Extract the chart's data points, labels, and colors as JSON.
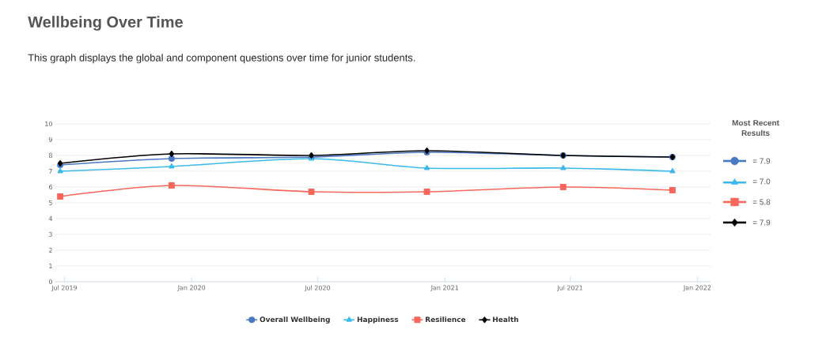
{
  "chart_data": {
    "type": "line",
    "title": "Wellbeing Over Time",
    "subtitle": "This graph displays the global and component questions over time for junior students.",
    "x": [
      "2019-06-25",
      "2019-12-03",
      "2020-06-22",
      "2020-12-06",
      "2021-06-21",
      "2021-11-26"
    ],
    "series": [
      {
        "name": "Overall Wellbeing",
        "color": "#4a78c2",
        "marker": "circle",
        "values": [
          7.4,
          7.8,
          7.9,
          8.2,
          8.0,
          7.9
        ]
      },
      {
        "name": "Happiness",
        "color": "#3cb9ea",
        "marker": "triangle",
        "values": [
          7.0,
          7.3,
          7.8,
          7.2,
          7.2,
          7.0
        ]
      },
      {
        "name": "Resilience",
        "color": "#f9675c",
        "marker": "square",
        "values": [
          5.4,
          6.1,
          5.7,
          5.7,
          6.0,
          5.8
        ]
      },
      {
        "name": "Health",
        "color": "#000000",
        "marker": "diamond",
        "values": [
          7.5,
          8.1,
          8.0,
          8.3,
          8.0,
          7.9
        ]
      }
    ],
    "xlim": [
      "2019-06-18",
      "2022-01-20"
    ],
    "xticks": [
      {
        "value": "2019-07-01",
        "label": "Jul 2019"
      },
      {
        "value": "2020-01-01",
        "label": "Jan 2020"
      },
      {
        "value": "2020-07-01",
        "label": "Jul 2020"
      },
      {
        "value": "2021-01-01",
        "label": "Jan 2021"
      },
      {
        "value": "2021-07-01",
        "label": "Jul 2021"
      },
      {
        "value": "2022-01-01",
        "label": "Jan 2022"
      }
    ],
    "ylim": [
      0,
      10
    ],
    "yticks": [
      0,
      1,
      2,
      3,
      4,
      5,
      6,
      7,
      8,
      9,
      10
    ],
    "grid": "y",
    "legend": "bottom",
    "line_style": "solid",
    "legend_title": "Most Recent Results",
    "annotations": [
      "= 7.9",
      "= 7.0",
      "= 5.8",
      "= 7.9"
    ]
  }
}
